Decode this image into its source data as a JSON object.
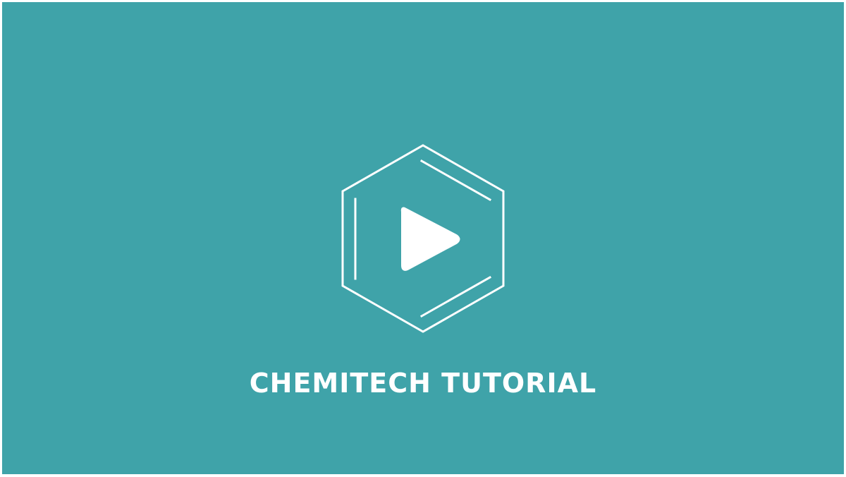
{
  "colors": {
    "background": "#3fa3a9",
    "foreground": "#ffffff",
    "border": "#ffffff"
  },
  "logo": {
    "icon": "benzene-hexagon-play-icon"
  },
  "title": {
    "text": "CHEMITECH TUTORIAL"
  }
}
